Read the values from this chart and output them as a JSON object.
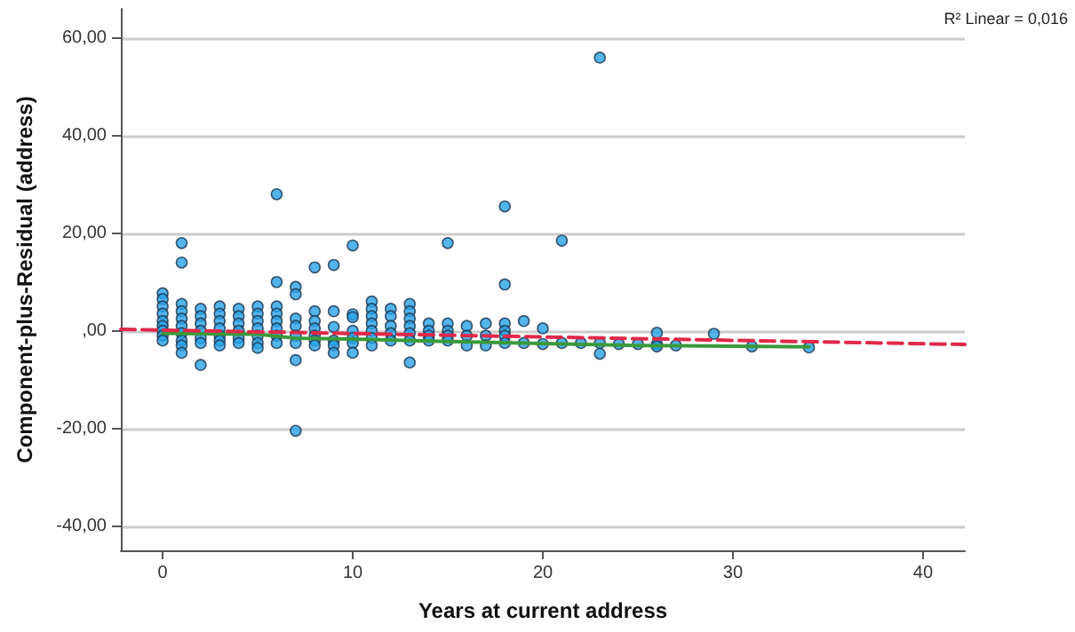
{
  "chart_data": {
    "type": "scatter",
    "xlabel": "Years at current address",
    "ylabel": "Component-plus-Residual (address)",
    "annotations": [
      "R² Linear = 0,016"
    ],
    "xlim": [
      -2.2,
      42.2
    ],
    "xticks": [
      0,
      10,
      20,
      30,
      40
    ],
    "ylim": [
      -45,
      66
    ],
    "yticks": [
      {
        "value": -40,
        "label": "-40,00"
      },
      {
        "value": -20,
        "label": "-20,00"
      },
      {
        "value": 0,
        "label": ",00"
      },
      {
        "value": 20,
        "label": "20,00"
      },
      {
        "value": 40,
        "label": "40,00"
      },
      {
        "value": 60,
        "label": "60,00"
      }
    ],
    "grid": "y",
    "marker": "circle",
    "series": [
      {
        "color": "#29a3e6",
        "x": [
          0,
          0,
          0,
          0,
          0,
          0,
          0,
          0,
          0,
          1,
          1,
          1,
          1,
          1,
          1,
          1,
          1,
          1,
          1,
          2,
          2,
          2,
          2,
          2,
          2,
          2,
          3,
          3,
          3,
          3,
          3,
          3,
          3,
          4,
          4,
          4,
          4,
          4,
          4,
          5,
          5,
          5,
          5,
          5,
          5,
          5,
          6,
          6,
          6,
          6,
          6,
          6,
          6,
          6,
          7,
          7,
          7,
          7,
          7,
          7,
          7,
          7,
          8,
          8,
          8,
          8,
          8,
          8,
          8,
          9,
          9,
          9,
          9,
          9,
          9,
          10,
          10,
          10,
          10,
          10,
          10,
          10,
          11,
          11,
          11,
          11,
          11,
          11,
          11,
          12,
          12,
          12,
          12,
          12,
          13,
          13,
          13,
          13,
          13,
          13,
          13,
          14,
          14,
          14,
          14,
          15,
          15,
          15,
          15,
          15,
          16,
          16,
          16,
          17,
          17,
          17,
          18,
          18,
          18,
          18,
          18,
          18,
          19,
          19,
          20,
          20,
          21,
          21,
          22,
          23,
          23,
          23,
          24,
          25,
          26,
          26,
          26,
          27,
          29,
          31,
          34
        ],
        "values": [
          7.7,
          6.5,
          5,
          3.5,
          2,
          1,
          0,
          -1,
          -2,
          18,
          14,
          5.5,
          4,
          2.5,
          1,
          -0.5,
          -2,
          -3,
          -4.5,
          4.5,
          3,
          1.5,
          0,
          -1.5,
          -2.5,
          -7,
          5,
          3.5,
          2,
          0.5,
          -1,
          -2,
          -3,
          4.5,
          3,
          1.5,
          0,
          -1.5,
          -2.5,
          5,
          3.5,
          2,
          0.5,
          -1,
          -2.5,
          -3.5,
          28,
          10,
          5,
          3.5,
          2,
          0.5,
          -1,
          -2.5,
          9,
          7.5,
          2.5,
          1,
          -1,
          -2.5,
          -6,
          -20.5,
          13,
          4,
          2,
          0.5,
          -1,
          -2,
          -3,
          13.5,
          4,
          0.8,
          -2,
          -3,
          -4.5,
          17.5,
          3.4,
          2.8,
          0,
          -1.5,
          -2.5,
          -4.5,
          6,
          4.5,
          3,
          1.5,
          0,
          -1.5,
          -3,
          4.5,
          3,
          1,
          -0.5,
          -2,
          5.5,
          4,
          2.5,
          1,
          -0.5,
          -2,
          -6.5,
          1.5,
          0,
          -1,
          -2,
          18,
          1.5,
          0,
          -1,
          -2,
          1,
          -1,
          -3,
          1.5,
          -1,
          -3,
          25.5,
          9.5,
          1.5,
          0,
          -1,
          -2.5,
          2,
          -2.5,
          0.5,
          -2.7,
          18.5,
          -2.5,
          -2.5,
          56,
          -2.5,
          -4.7,
          -2.7,
          -2.7,
          -0.4,
          -2.7,
          -3.2,
          -3,
          -0.6,
          -3.2,
          -3.4
        ]
      },
      {
        "type": "line",
        "color": "#3a9a3a",
        "line_style": "solid",
        "marker": "none",
        "x": [
          0,
          5,
          7,
          10,
          15,
          20,
          25,
          34
        ],
        "values": [
          -0.5,
          -0.7,
          -1.5,
          -1.7,
          -2.2,
          -2.6,
          -3,
          -3.3
        ]
      },
      {
        "type": "line",
        "color": "#e0284a",
        "line_style": "dashed",
        "marker": "none",
        "x": [
          -2.2,
          42.2
        ],
        "values": [
          0.3,
          -2.8
        ]
      }
    ]
  }
}
